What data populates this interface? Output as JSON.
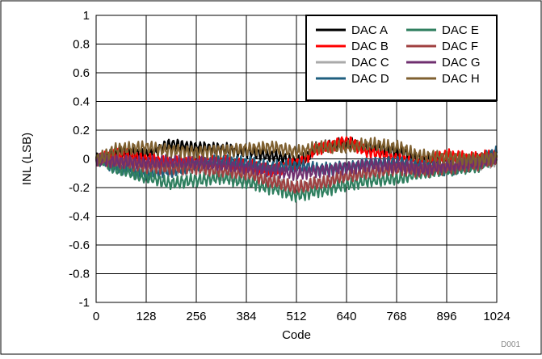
{
  "colors": {
    "DAC A": "#000000",
    "DAC B": "#ff0000",
    "DAC C": "#aaaaaa",
    "DAC D": "#1f5f7f",
    "DAC E": "#2f7f5f",
    "DAC F": "#a04040",
    "DAC G": "#6f2f6f",
    "DAC H": "#7f6030"
  },
  "chart_data": {
    "type": "line",
    "title": "",
    "xlabel": "Code",
    "ylabel": "INL (LSB)",
    "xlim": [
      0,
      1024
    ],
    "ylim": [
      -1,
      1
    ],
    "x_ticks": [
      0,
      128,
      256,
      384,
      512,
      640,
      768,
      896,
      1024
    ],
    "x_tick_labels": [
      "0",
      "128",
      "256",
      "384",
      "512",
      "640",
      "768",
      "896",
      "1024"
    ],
    "y_ticks": [
      1,
      0.8,
      0.6,
      0.4,
      0.2,
      0,
      -0.2,
      -0.4,
      -0.6,
      -0.8,
      -1
    ],
    "y_tick_labels": [
      "1",
      "0.8",
      "0.6",
      "0.4",
      "0.2",
      "0",
      "-0.2",
      "-0.4",
      "-0.6",
      "-0.8",
      "-1"
    ],
    "grid": true,
    "legend_position": "top-right",
    "x": [
      0,
      64,
      128,
      192,
      256,
      320,
      384,
      448,
      512,
      576,
      640,
      704,
      768,
      832,
      896,
      960,
      1024
    ],
    "series": [
      {
        "name": "DAC A",
        "values": [
          0,
          0.05,
          0.03,
          0.1,
          0.08,
          0.07,
          0.05,
          0.02,
          -0.02,
          0.08,
          0.1,
          0.08,
          0.05,
          0.0,
          -0.02,
          0.0,
          0.02
        ]
      },
      {
        "name": "DAC B",
        "values": [
          0,
          0.03,
          0.0,
          -0.03,
          -0.02,
          -0.02,
          -0.05,
          -0.08,
          -0.03,
          0.08,
          0.12,
          0.05,
          0.0,
          -0.03,
          0.02,
          0.0,
          0.02
        ]
      },
      {
        "name": "DAC C",
        "values": [
          0,
          -0.04,
          -0.07,
          -0.08,
          -0.07,
          -0.1,
          -0.12,
          -0.15,
          -0.2,
          -0.17,
          -0.13,
          -0.1,
          -0.08,
          -0.07,
          -0.05,
          -0.04,
          -0.01
        ]
      },
      {
        "name": "DAC D",
        "values": [
          0,
          -0.06,
          -0.1,
          -0.08,
          -0.04,
          -0.02,
          -0.03,
          -0.06,
          -0.05,
          -0.07,
          -0.06,
          -0.03,
          -0.02,
          -0.05,
          -0.07,
          -0.04,
          0.04
        ]
      },
      {
        "name": "DAC E",
        "values": [
          0,
          -0.08,
          -0.13,
          -0.17,
          -0.15,
          -0.13,
          -0.16,
          -0.2,
          -0.25,
          -0.22,
          -0.18,
          -0.15,
          -0.14,
          -0.1,
          -0.08,
          -0.06,
          0.0
        ]
      },
      {
        "name": "DAC F",
        "values": [
          0,
          -0.02,
          -0.05,
          -0.06,
          -0.06,
          -0.08,
          -0.1,
          -0.16,
          -0.2,
          -0.17,
          -0.12,
          -0.09,
          -0.07,
          -0.08,
          -0.06,
          -0.04,
          0.0
        ]
      },
      {
        "name": "DAC G",
        "values": [
          0,
          -0.02,
          -0.03,
          -0.02,
          -0.03,
          -0.04,
          -0.06,
          -0.08,
          -0.1,
          -0.08,
          -0.06,
          -0.04,
          -0.05,
          -0.07,
          -0.05,
          -0.03,
          0.0
        ]
      },
      {
        "name": "DAC H",
        "values": [
          0,
          0.07,
          0.08,
          0.06,
          0.05,
          0.06,
          0.07,
          0.08,
          0.05,
          0.08,
          0.08,
          0.1,
          0.08,
          0.02,
          0.01,
          0.0,
          0.01
        ]
      }
    ]
  },
  "figure_id": "D001"
}
